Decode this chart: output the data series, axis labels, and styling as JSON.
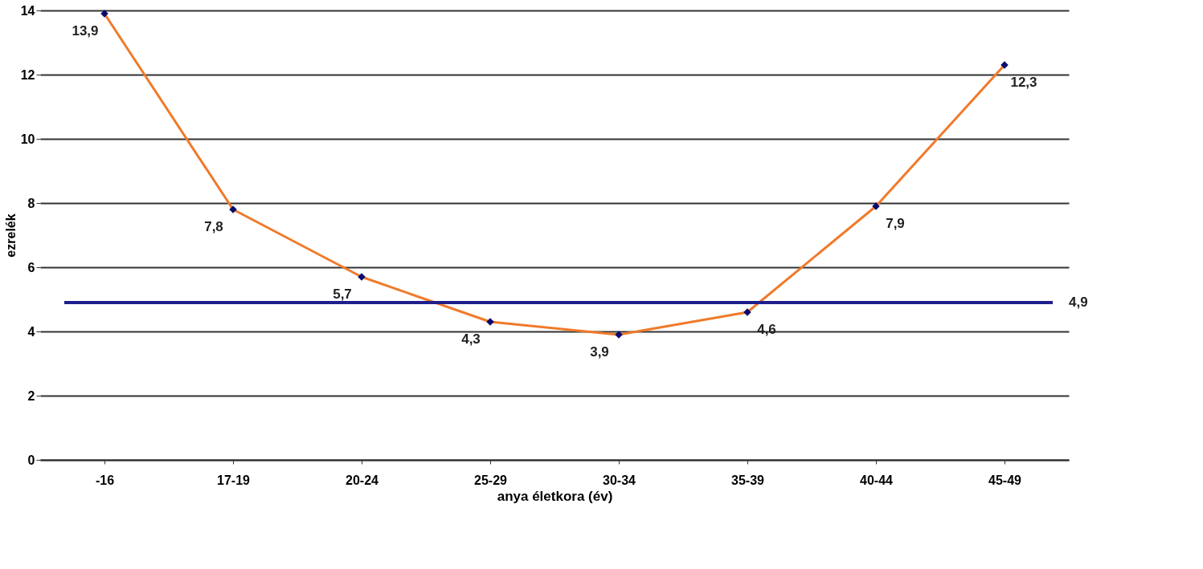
{
  "chart_data": {
    "type": "line",
    "xlabel": "anya életkora (év)",
    "ylabel": "ezrelék",
    "categories": [
      "-16",
      "17-19",
      "20-24",
      "25-29",
      "30-34",
      "35-39",
      "40-44",
      "45-49"
    ],
    "series": [
      {
        "color": "#f07a2a",
        "colors": [
          "#0a0a6e",
          "#0a0a6e",
          "#0a0a6e",
          "#0a0a6e",
          "#0a0a6e",
          "#0a0a6e",
          "#0a0a6e",
          "#0a0a6e"
        ],
        "values": [
          13.9,
          7.8,
          5.7,
          4.3,
          3.9,
          4.6,
          7.9,
          12.3
        ],
        "value_labels": [
          "13,9",
          "7,8",
          "5,7",
          "4,3",
          "3,9",
          "4,6",
          "7,9",
          "12,3"
        ]
      }
    ],
    "ref_lines": [
      {
        "axis": "y",
        "value": 4.9,
        "label": "4,9",
        "color": "#1f1f8c"
      }
    ],
    "ylim": [
      0,
      14
    ],
    "yticks": [
      0,
      2,
      4,
      6,
      8,
      10,
      12,
      14
    ],
    "grid": "y",
    "marker": "diamond",
    "line_style": "solid"
  }
}
